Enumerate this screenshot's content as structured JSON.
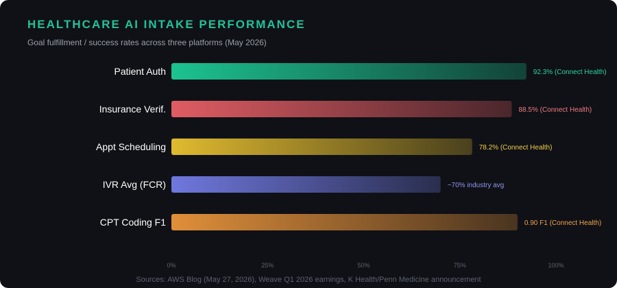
{
  "title": "HEALTHCARE AI INTAKE PERFORMANCE",
  "subtitle": "Goal fulfillment / success rates across three platforms (May 2026)",
  "source": "Sources: AWS Blog (May 27, 2026), Weave Q1 2026 earnings, K Health/Penn Medicine announcement",
  "chart_data": {
    "type": "bar",
    "orientation": "horizontal",
    "categories": [
      "Patient Auth",
      "Insurance Verif.",
      "Appt Scheduling",
      "IVR Avg (FCR)",
      "CPT Coding F1"
    ],
    "values": [
      92.3,
      88.5,
      78.2,
      70,
      90
    ],
    "data_labels": [
      "92.3% (Connect Health)",
      "88.5% (Connect Health)",
      "78.2% (Connect Health)",
      "~70% industry avg",
      "0.90 F1 (Connect Health)"
    ],
    "colors": [
      "#1cc391",
      "#e05c63",
      "#e0ba2e",
      "#6f78de",
      "#e08f3a"
    ],
    "label_colors": [
      "#2dd4a0",
      "#f07a7f",
      "#f5cf4a",
      "#8f96f0",
      "#f0a24f"
    ],
    "xlim": [
      0,
      100
    ],
    "xticks": [
      "0%",
      "25%",
      "50%",
      "75%",
      "100%"
    ],
    "grid": false,
    "legend": "none"
  }
}
